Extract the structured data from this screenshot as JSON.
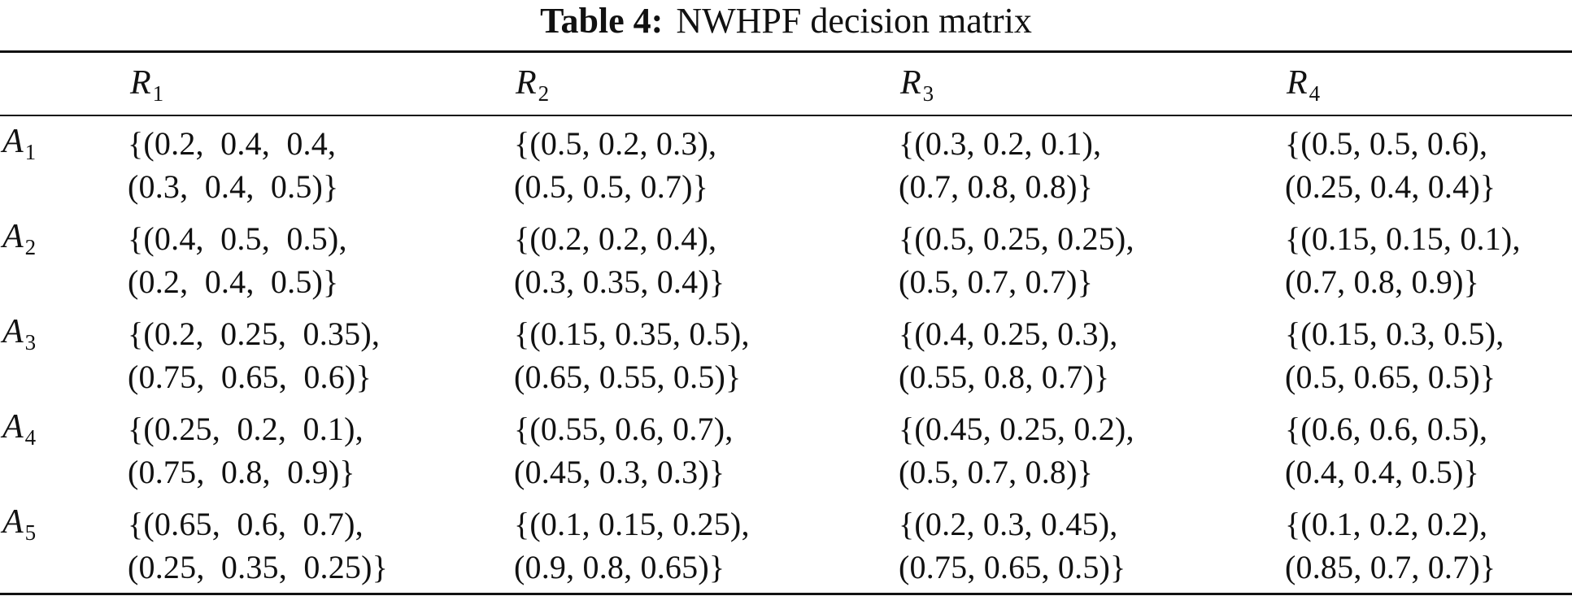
{
  "caption": {
    "label": "Table 4:",
    "title": "NWHPF decision matrix"
  },
  "columns": [
    {
      "letter": "R",
      "sub": "1"
    },
    {
      "letter": "R",
      "sub": "2"
    },
    {
      "letter": "R",
      "sub": "3"
    },
    {
      "letter": "R",
      "sub": "4"
    }
  ],
  "rows": [
    {
      "letter": "A",
      "sub": "1",
      "cells": [
        [
          "{(0.2,  0.4,  0.4,",
          "(0.3,  0.4,  0.5)}"
        ],
        [
          "{(0.5, 0.2, 0.3),",
          "(0.5, 0.5, 0.7)}"
        ],
        [
          "{(0.3, 0.2, 0.1),",
          "(0.7, 0.8, 0.8)}"
        ],
        [
          "{(0.5, 0.5, 0.6),",
          "(0.25, 0.4, 0.4)}"
        ]
      ]
    },
    {
      "letter": "A",
      "sub": "2",
      "cells": [
        [
          "{(0.4,  0.5,  0.5),",
          "(0.2,  0.4,  0.5)}"
        ],
        [
          "{(0.2, 0.2, 0.4),",
          "(0.3, 0.35, 0.4)}"
        ],
        [
          "{(0.5, 0.25, 0.25),",
          "(0.5, 0.7, 0.7)}"
        ],
        [
          "{(0.15, 0.15, 0.1),",
          "(0.7, 0.8, 0.9)}"
        ]
      ]
    },
    {
      "letter": "A",
      "sub": "3",
      "cells": [
        [
          "{(0.2,  0.25,  0.35),",
          "(0.75,  0.65,  0.6)}"
        ],
        [
          "{(0.15, 0.35, 0.5),",
          "(0.65, 0.55, 0.5)}"
        ],
        [
          "{(0.4, 0.25, 0.3),",
          "(0.55, 0.8, 0.7)}"
        ],
        [
          "{(0.15, 0.3, 0.5),",
          "(0.5, 0.65, 0.5)}"
        ]
      ]
    },
    {
      "letter": "A",
      "sub": "4",
      "cells": [
        [
          "{(0.25,  0.2,  0.1),",
          "(0.75,  0.8,  0.9)}"
        ],
        [
          "{(0.55, 0.6, 0.7),",
          "(0.45, 0.3, 0.3)}"
        ],
        [
          "{(0.45, 0.25, 0.2),",
          "(0.5, 0.7, 0.8)}"
        ],
        [
          "{(0.6, 0.6, 0.5),",
          "(0.4, 0.4, 0.5)}"
        ]
      ]
    },
    {
      "letter": "A",
      "sub": "5",
      "cells": [
        [
          "{(0.65,  0.6,  0.7),",
          "(0.25,  0.35,  0.25)}"
        ],
        [
          "{(0.1, 0.15, 0.25),",
          "(0.9, 0.8, 0.65)}"
        ],
        [
          "{(0.2, 0.3, 0.45),",
          "(0.75, 0.65, 0.5)}"
        ],
        [
          "{(0.1, 0.2, 0.2),",
          "(0.85, 0.7, 0.7)}"
        ]
      ]
    }
  ]
}
